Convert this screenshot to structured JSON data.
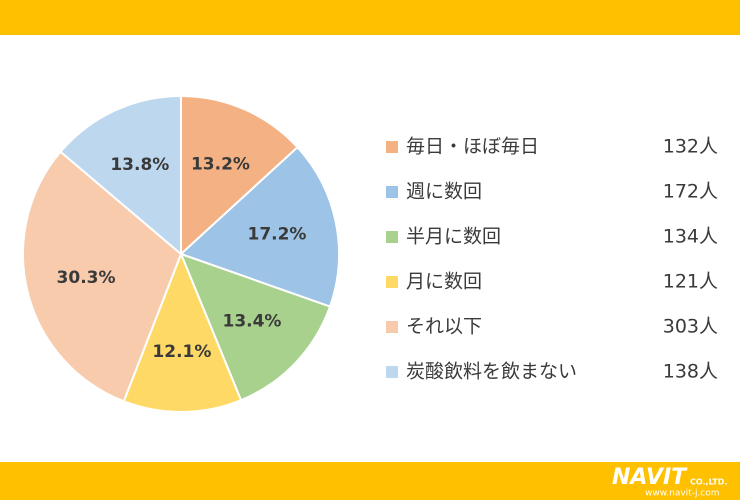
{
  "chart_data": {
    "type": "pie",
    "categories": [
      "毎日・ほぼ毎日",
      "週に数回",
      "半月に数回",
      "月に数回",
      "それ以下",
      "炭酸飲料を飲まない"
    ],
    "values": [
      13.2,
      17.2,
      13.4,
      12.1,
      30.3,
      13.8
    ],
    "value_labels": [
      "13.2%",
      "17.2%",
      "13.4%",
      "12.1%",
      "30.3%",
      "13.8%"
    ],
    "count_labels": [
      "132人",
      "172人",
      "134人",
      "121人",
      "303人",
      "138人"
    ],
    "colors": [
      "#f4b183",
      "#9dc3e6",
      "#a9d18e",
      "#ffd966",
      "#f8cbad",
      "#bdd7ee"
    ]
  },
  "footer": {
    "logo": "NAVIT",
    "company_suffix": "CO.,LTD.",
    "url": "www.navit-j.com"
  }
}
